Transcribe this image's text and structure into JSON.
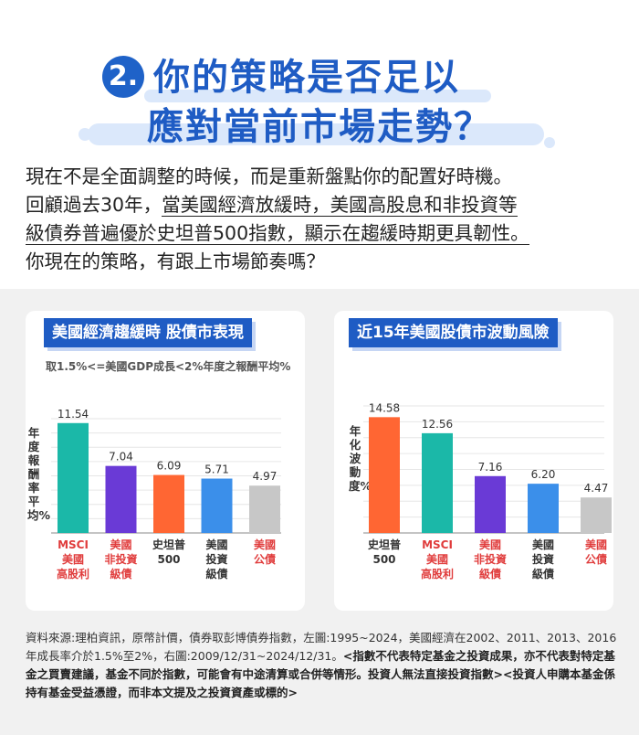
{
  "header": {
    "badge": "2.",
    "title_line1": "你的策略是否足以",
    "title_line2": "應對當前市場走勢？"
  },
  "intro": {
    "line1": "現在不是全面調整的時候，而是重新盤點你的配置好時機。",
    "line2_a": "回顧過去30年，",
    "line2_b": "當美國經濟放緩時，美國高股息和非投資等",
    "line3_a": "級債券普遍優於",
    "line3_b": "史坦普500指數，顯示在趨緩時期更具韌性。",
    "line4": "你現在的策略，有跟上市場節奏嗎？"
  },
  "colors": {
    "brand_blue": "#1f5cc4",
    "teal": "#1bb8a8",
    "purple": "#6a3ad6",
    "orange": "#ff6633",
    "blue": "#3b8fea",
    "gray": "#c7c7c7",
    "label_red": "#e03c3c",
    "panel_bg": "#f1f1f1"
  },
  "chart_data": [
    {
      "type": "bar",
      "title": "美國經濟趨緩時 股債市表現",
      "subtitle": "取1.5%<=美國GDP成長<2%年度之報酬平均%",
      "ylabel": "年度報酬率平均%",
      "categories": [
        "MSCI\n美國\n高股利",
        "美國\n非投資\n級債",
        "史坦普\n500",
        "美國\n投資\n級債",
        "美國\n公債"
      ],
      "values": [
        11.54,
        7.04,
        6.09,
        5.71,
        4.97
      ],
      "bar_colors": [
        "#1bb8a8",
        "#6a3ad6",
        "#ff6633",
        "#3b8fea",
        "#c7c7c7"
      ],
      "label_colors": [
        "#e03c3c",
        "#e03c3c",
        "#333333",
        "#333333",
        "#e03c3c"
      ],
      "ylim": [
        0,
        12
      ],
      "grid": true
    },
    {
      "type": "bar",
      "title": "近15年美國股債市波動風險",
      "ylabel": "年化波動度%",
      "categories": [
        "史坦普\n500",
        "MSCI\n美國\n高股利",
        "美國\n非投資\n級債",
        "美國\n投資\n級債",
        "美國\n公債"
      ],
      "values": [
        14.58,
        12.56,
        7.16,
        6.2,
        4.47
      ],
      "bar_colors": [
        "#ff6633",
        "#1bb8a8",
        "#6a3ad6",
        "#3b8fea",
        "#c7c7c7"
      ],
      "label_colors": [
        "#333333",
        "#e03c3c",
        "#e03c3c",
        "#333333",
        "#e03c3c"
      ],
      "ylim": [
        0,
        16
      ],
      "grid": true
    }
  ],
  "footnote": {
    "plain": "資料來源:理柏資訊，原幣計價，債券取彭博債券指數，左圖:1995~2024，美國經濟在2002、2011、2013、2016年成長率介於1.5%至2%，右圖:2009/12/31~2024/12/31。",
    "bold": "<指數不代表特定基金之投資成果，亦不代表對特定基金之買賣建議，基金不同於指數，可能會有中途清算或合併等情形。投資人無法直接投資指數><投資人申購本基金係持有基金受益憑證，而非本文提及之投資資產或標的>"
  }
}
